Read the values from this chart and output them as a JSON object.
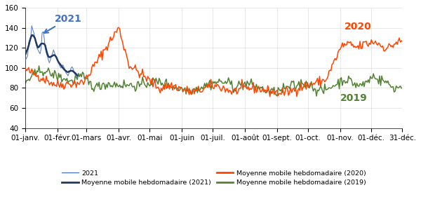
{
  "title": "",
  "ylim": [
    40,
    160
  ],
  "yticks": [
    40,
    60,
    80,
    100,
    120,
    140,
    160
  ],
  "colors": {
    "raw_2021": "#4472C4",
    "ma_2021": "#1F3864",
    "ma_2020": "#FF4500",
    "ma_2019": "#548235"
  },
  "xlabel_dates": [
    "01-janv.",
    "01-févr.",
    "01-mars",
    "01-avr.",
    "01-mai",
    "01-juin",
    "01-juil.",
    "01-août",
    "01-sept.",
    "01-oct.",
    "01-nov.",
    "01-déc.",
    "31-déc."
  ]
}
